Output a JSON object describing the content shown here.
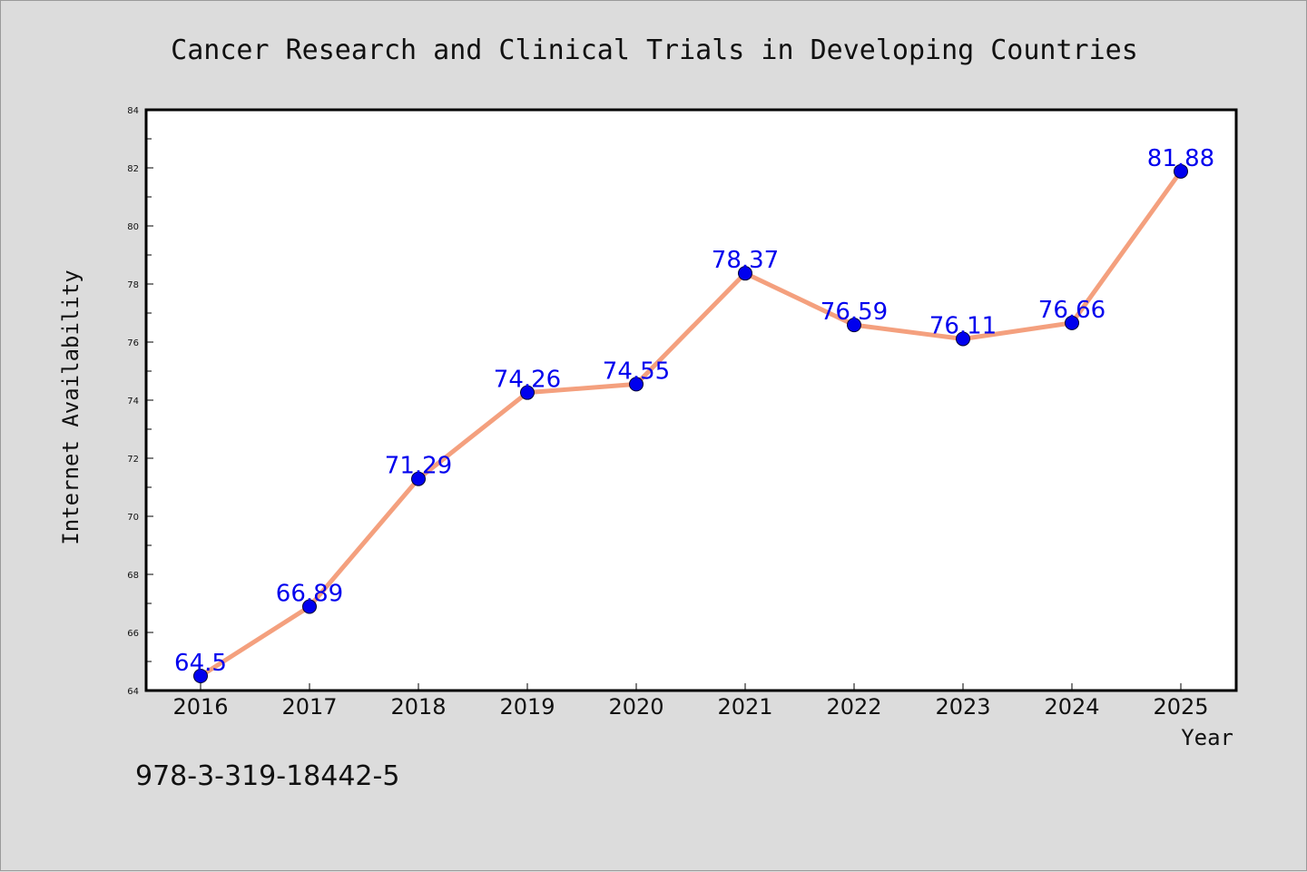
{
  "chart_data": {
    "type": "line",
    "title": "Cancer Research and Clinical Trials in Developing Countries",
    "xlabel": "Year",
    "ylabel": "Internet Availability",
    "categories": [
      "2016",
      "2017",
      "2018",
      "2019",
      "2020",
      "2021",
      "2022",
      "2023",
      "2024",
      "2025"
    ],
    "values": [
      64.5,
      66.89,
      71.29,
      74.26,
      74.55,
      78.37,
      76.59,
      76.11,
      76.66,
      81.88
    ],
    "data_labels": [
      "64.5",
      "66.89",
      "71.29",
      "74.26",
      "74.55",
      "78.37",
      "76.59",
      "76.11",
      "76.66",
      "81.88"
    ],
    "ylim": [
      64,
      84
    ],
    "yticks": [
      64,
      66,
      68,
      70,
      72,
      74,
      76,
      78,
      80,
      82,
      84
    ],
    "grid": false,
    "legend": "none",
    "line_color": "#f4a07e",
    "marker_color": "#0000ee",
    "label_color": "#0000ee"
  },
  "footer": {
    "isbn": "978-3-319-18442-5"
  }
}
